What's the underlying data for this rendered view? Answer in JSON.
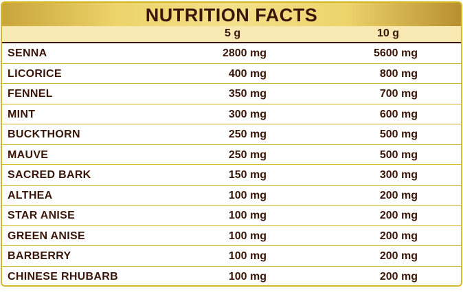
{
  "title": "NUTRITION FACTS",
  "columns": [
    "5 g",
    "10 g"
  ],
  "rows": [
    {
      "name": "SENNA",
      "v5": "2800 mg",
      "v10": "5600 mg"
    },
    {
      "name": "LICORICE",
      "v5": "400 mg",
      "v10": "800 mg"
    },
    {
      "name": "FENNEL",
      "v5": "350 mg",
      "v10": "700 mg"
    },
    {
      "name": "MINT",
      "v5": "300 mg",
      "v10": "600 mg"
    },
    {
      "name": "BUCKTHORN",
      "v5": "250 mg",
      "v10": "500 mg"
    },
    {
      "name": "MAUVE",
      "v5": "250 mg",
      "v10": "500 mg"
    },
    {
      "name": "SACRED BARK",
      "v5": "150 mg",
      "v10": "300 mg"
    },
    {
      "name": "ALTHEA",
      "v5": "100 mg",
      "v10": "200 mg"
    },
    {
      "name": "STAR ANISE",
      "v5": "100 mg",
      "v10": "200 mg"
    },
    {
      "name": "GREEN ANISE",
      "v5": "100 mg",
      "v10": "200 mg"
    },
    {
      "name": "BARBERRY",
      "v5": "100 mg",
      "v10": "200 mg"
    },
    {
      "name": "CHINESE RHUBARB",
      "v5": "100 mg",
      "v10": "200 mg"
    }
  ]
}
